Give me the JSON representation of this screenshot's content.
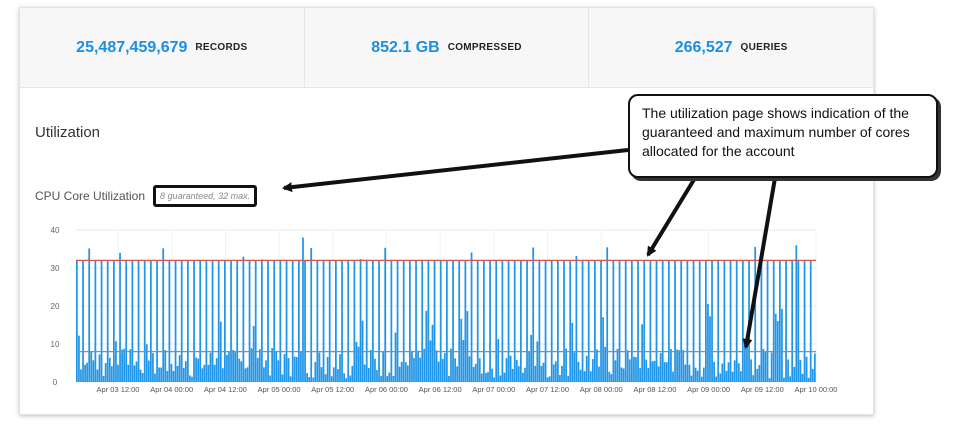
{
  "stats": [
    {
      "value": "25,487,459,679",
      "label": "RECORDS"
    },
    {
      "value": "852.1 GB",
      "label": "COMPRESSED"
    },
    {
      "value": "266,527",
      "label": "QUERIES"
    }
  ],
  "utilization": {
    "title": "Utilization",
    "cpu_label": "CPU Core Utilization",
    "cpu_note": "8 guaranteed, 32 max."
  },
  "callout": {
    "text": "The utilization page shows indication of the guaranteed and maximum number of cores allocated for the account"
  },
  "colors": {
    "accent": "#1c8fe3",
    "area": "#2196e8",
    "max_line": "#d9534f",
    "guaranteed_line": "#7a8fa3"
  },
  "chart_data": {
    "type": "area",
    "y_ticks": [
      "40",
      "30",
      "20",
      "10",
      "0"
    ],
    "ylim": [
      0,
      40
    ],
    "x_tick_labels": [
      "Apr 03 12:00",
      "Apr 04 00:00",
      "Apr 04 12:00",
      "Apr 05 00:00",
      "Apr 05 12:00",
      "Apr 06 00:00",
      "Apr 06 12:00",
      "Apr 07 00:00",
      "Apr 07 12:00",
      "Apr 08 00:00",
      "Apr 08 12:00",
      "Apr 09 00:00",
      "Apr 09 12:00",
      "Apr 10 00:00"
    ],
    "max_cores": 32,
    "guaranteed_cores": 8,
    "grid": true,
    "series": [
      {
        "values": []
      }
    ]
  }
}
